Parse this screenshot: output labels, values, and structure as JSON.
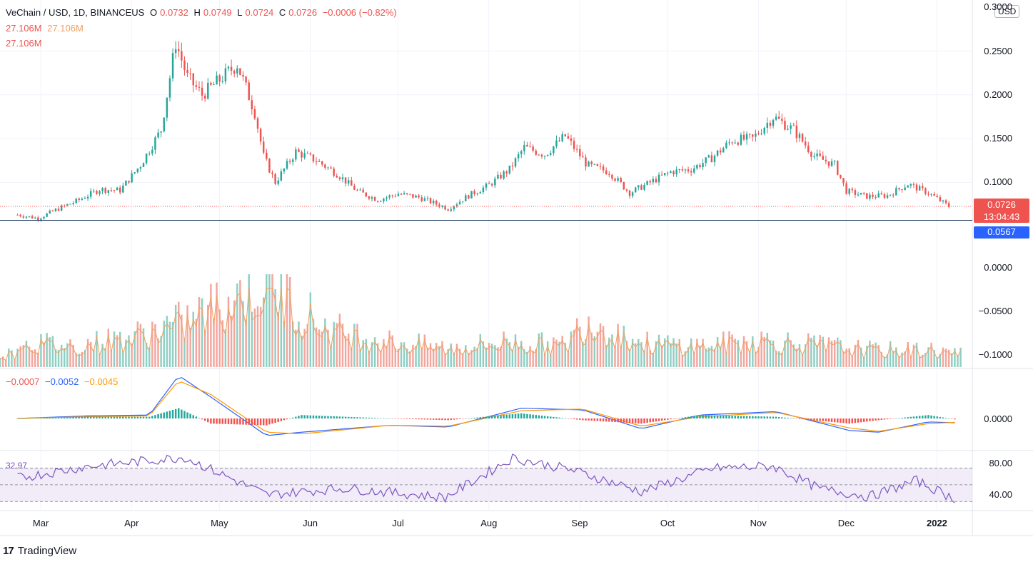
{
  "header": {
    "symbol_line": "VeChain / USD, 1D, BINANCEUS",
    "o_label": "O",
    "o_value": "0.0732",
    "h_label": "H",
    "h_value": "0.0749",
    "l_label": "L",
    "l_value": "0.0724",
    "c_label": "C",
    "c_value": "0.0726",
    "change": "−0.0006 (−0.82%)",
    "volume_1": "27.106M",
    "volume_2": "27.106M",
    "volume_3": "27.106M"
  },
  "macd_legend": {
    "hist": "−0.0007",
    "macd": "−0.0052",
    "signal": "−0.0045"
  },
  "rsi_legend": {
    "value": "32.97"
  },
  "price_axis": {
    "labels": [
      "0.3000",
      "0.2500",
      "0.2000",
      "0.1500",
      "0.1000",
      "0.0000",
      "−0.0500",
      "−0.1000"
    ],
    "currency": "USD"
  },
  "macd_axis": {
    "labels": [
      "0.0000"
    ]
  },
  "rsi_axis": {
    "labels": [
      "80.00",
      "40.00"
    ]
  },
  "badges": {
    "last_price": "0.0726",
    "countdown": "13:04:43",
    "line_level": "0.0567",
    "last_price_color": "#ef5350",
    "line_level_color": "#2962ff"
  },
  "time_axis": [
    "Mar",
    "Apr",
    "May",
    "Jun",
    "Jul",
    "Aug",
    "Sep",
    "Oct",
    "Nov",
    "Dec",
    "2022"
  ],
  "brand": {
    "name": "TradingView",
    "icon": "tradingview-logo-icon"
  },
  "colors": {
    "up": "#26a69a",
    "down": "#ef5350",
    "macd": "#2962ff",
    "signal": "#ff9800",
    "rsi": "#7e57c2"
  },
  "chart_data": [
    {
      "type": "candlestick",
      "title": "VeChain / USD, 1D, BINANCEUS",
      "x": [
        "2021-02-24",
        "2021-03-03",
        "2021-03-10",
        "2021-03-17",
        "2021-03-24",
        "2021-03-31",
        "2021-04-07",
        "2021-04-14",
        "2021-04-19",
        "2021-04-23",
        "2021-04-28",
        "2021-05-05",
        "2021-05-10",
        "2021-05-16",
        "2021-05-19",
        "2021-05-23",
        "2021-05-30",
        "2021-06-06",
        "2021-06-13",
        "2021-06-20",
        "2021-06-27",
        "2021-07-04",
        "2021-07-11",
        "2021-07-18",
        "2021-07-21",
        "2021-07-28",
        "2021-08-04",
        "2021-08-11",
        "2021-08-16",
        "2021-08-23",
        "2021-08-30",
        "2021-09-06",
        "2021-09-07",
        "2021-09-14",
        "2021-09-21",
        "2021-09-28",
        "2021-10-05",
        "2021-10-12",
        "2021-10-19",
        "2021-10-26",
        "2021-11-02",
        "2021-11-09",
        "2021-11-16",
        "2021-11-23",
        "2021-11-30",
        "2021-12-04",
        "2021-12-11",
        "2021-12-18",
        "2021-12-25",
        "2022-01-01",
        "2022-01-08"
      ],
      "close": [
        0.063,
        0.059,
        0.07,
        0.08,
        0.092,
        0.091,
        0.12,
        0.16,
        0.26,
        0.22,
        0.2,
        0.22,
        0.235,
        0.18,
        0.13,
        0.1,
        0.135,
        0.125,
        0.11,
        0.09,
        0.08,
        0.087,
        0.083,
        0.074,
        0.07,
        0.085,
        0.097,
        0.115,
        0.14,
        0.132,
        0.153,
        0.122,
        0.119,
        0.112,
        0.088,
        0.1,
        0.112,
        0.115,
        0.128,
        0.148,
        0.15,
        0.175,
        0.16,
        0.13,
        0.12,
        0.09,
        0.084,
        0.085,
        0.098,
        0.088,
        0.0726
      ],
      "ylim": [
        0.0,
        0.3
      ],
      "reference_line": 0.0567,
      "last_price": 0.0726
    },
    {
      "type": "bar",
      "title": "Volume",
      "x": [
        "2021-02-24",
        "2021-03-15",
        "2021-04-04",
        "2021-04-24",
        "2021-05-19",
        "2021-06-10",
        "2021-07-01",
        "2021-07-21",
        "2021-08-10",
        "2021-08-30",
        "2021-09-06",
        "2021-09-25",
        "2021-10-15",
        "2021-11-04",
        "2021-11-24",
        "2021-12-14",
        "2022-01-03",
        "2022-01-10"
      ],
      "values": [
        0.3,
        0.25,
        0.35,
        0.55,
        1.0,
        0.45,
        0.3,
        0.22,
        0.3,
        0.25,
        0.57,
        0.28,
        0.25,
        0.32,
        0.26,
        0.2,
        0.2,
        0.16
      ]
    },
    {
      "type": "line",
      "title": "MACD",
      "x": [
        "2021-02-24",
        "2021-03-20",
        "2021-04-10",
        "2021-04-20",
        "2021-05-01",
        "2021-05-20",
        "2021-06-01",
        "2021-07-01",
        "2021-07-21",
        "2021-08-15",
        "2021-09-05",
        "2021-09-25",
        "2021-10-15",
        "2021-11-10",
        "2021-12-05",
        "2021-12-15",
        "2022-01-01",
        "2022-01-10"
      ],
      "series": [
        {
          "name": "−0.0052",
          "values": [
            0.0,
            0.003,
            0.004,
            0.05,
            0.025,
            -0.02,
            -0.016,
            -0.008,
            -0.01,
            0.012,
            0.01,
            -0.012,
            0.004,
            0.008,
            -0.014,
            -0.016,
            -0.004,
            -0.005
          ]
        },
        {
          "name": "−0.0045",
          "values": [
            0.0,
            0.002,
            0.003,
            0.044,
            0.028,
            -0.016,
            -0.018,
            -0.008,
            -0.009,
            0.009,
            0.011,
            -0.009,
            0.002,
            0.007,
            -0.011,
            -0.015,
            -0.006,
            -0.0045
          ]
        }
      ],
      "ylabel": "",
      "yticks": [
        "0.0000"
      ]
    },
    {
      "type": "line",
      "title": "RSI",
      "x": [
        "2021-02-24",
        "2021-03-20",
        "2021-04-22",
        "2021-05-20",
        "2021-06-15",
        "2021-07-20",
        "2021-08-12",
        "2021-09-01",
        "2021-09-25",
        "2021-10-20",
        "2021-11-09",
        "2021-11-25",
        "2021-12-12",
        "2021-12-28",
        "2022-01-10"
      ],
      "values": [
        58,
        72,
        83,
        38,
        46,
        35,
        82,
        68,
        42,
        70,
        72,
        45,
        36,
        55,
        33
      ],
      "ylim": [
        20,
        90
      ],
      "yticks": [
        "80.00",
        "40.00"
      ],
      "last_value": 32.97
    }
  ]
}
